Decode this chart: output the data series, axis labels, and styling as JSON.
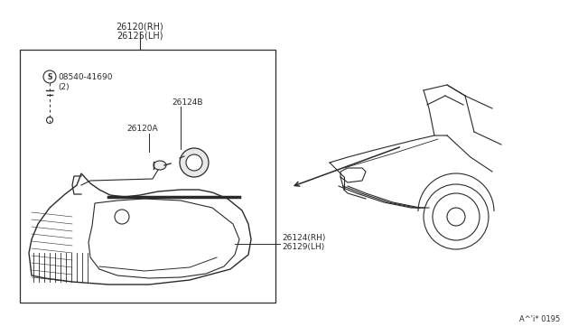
{
  "bg_color": "#ffffff",
  "line_color": "#2a2a2a",
  "text_color": "#2a2a2a",
  "part_label_26120": "26120(RH)",
  "part_label_26125": "26125(LH)",
  "part_label_08540": "08540-41690",
  "part_label_08540_qty": "(2)",
  "part_label_26124B": "26124B",
  "part_label_26120A": "26120A",
  "part_label_26124RH": "26124(RH)",
  "part_label_26129LH": "26129(LH)",
  "page_code": "A^'i* 0195",
  "font_size_labels": 6.5,
  "font_size_page": 6.0
}
